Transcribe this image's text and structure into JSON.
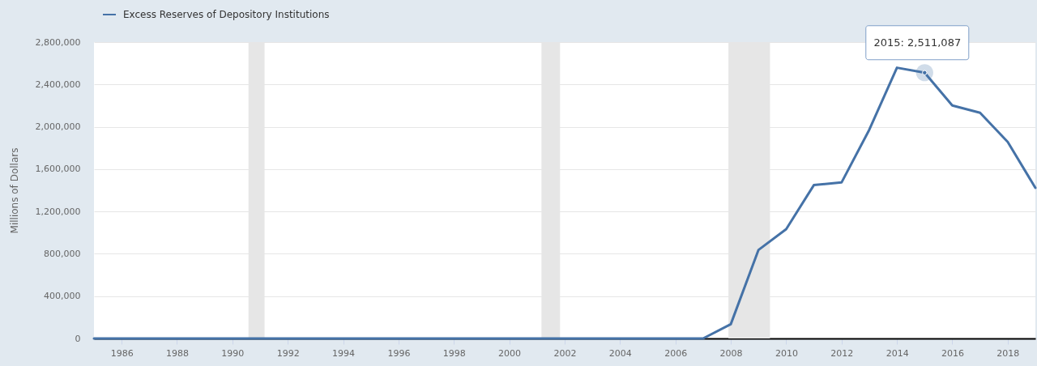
{
  "chart_data": {
    "type": "line",
    "x": [
      "1985",
      "1986",
      "1987",
      "1988",
      "1989",
      "1990",
      "1991",
      "1992",
      "1993",
      "1994",
      "1995",
      "1996",
      "1997",
      "1998",
      "1999",
      "2000",
      "2001",
      "2002",
      "2003",
      "2004",
      "2005",
      "2006",
      "2007",
      "2008",
      "2009",
      "2010",
      "2011",
      "2012",
      "2013",
      "2014",
      "2015",
      "2016",
      "2017",
      "2018",
      "2019"
    ],
    "series": [
      {
        "name": "Excess Reserves of Depository Institutions",
        "color": "#4572a7",
        "values": [
          0,
          0,
          0,
          0,
          0,
          0,
          0,
          0,
          0,
          0,
          0,
          0,
          0,
          0,
          0,
          0,
          0,
          0,
          0,
          0,
          0,
          0,
          0,
          135000,
          837000,
          1033000,
          1449000,
          1474000,
          1972000,
          2558000,
          2511087,
          2201000,
          2132000,
          1857000,
          1423000
        ]
      }
    ],
    "ylabel": "Millions of Dollars",
    "xlim": [
      "1985",
      "2019"
    ],
    "xticks": [
      "1986",
      "1988",
      "1990",
      "1992",
      "1994",
      "1996",
      "1998",
      "2000",
      "2002",
      "2004",
      "2006",
      "2008",
      "2010",
      "2012",
      "2014",
      "2016",
      "2018"
    ],
    "ylim": [
      0,
      2800000
    ],
    "yticks": [
      0,
      {
        "value": 400000,
        "label": "400,000"
      },
      {
        "value": 800000,
        "label": "800,000"
      },
      {
        "value": 1200000,
        "label": "1,200,000"
      },
      {
        "value": 1600000,
        "label": "1,600,000"
      },
      {
        "value": 2000000,
        "label": "2,000,000"
      },
      {
        "value": 2400000,
        "label": "2,400,000"
      },
      {
        "value": 2800000,
        "label": "2,800,000"
      }
    ],
    "grid": "y",
    "legend": "top left",
    "line_style": "solid",
    "bands": [
      {
        "axis": "x",
        "from": "1990-08",
        "to": "1991-03",
        "color": "#e6e6e6"
      },
      {
        "axis": "x",
        "from": "2001-03",
        "to": "2001-11",
        "color": "#e6e6e6"
      },
      {
        "axis": "x",
        "from": "2007-12",
        "to": "2009-06",
        "color": "#e6e6e6"
      }
    ],
    "annotations": [
      {
        "text": "2015: 2,511,087",
        "x": "2015",
        "y": 2511087
      }
    ]
  }
}
